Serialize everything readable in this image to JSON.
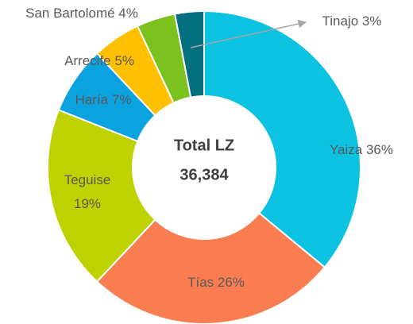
{
  "chart_data": {
    "type": "donut",
    "categories": [
      "Yaiza",
      "Tías",
      "Teguise",
      "Haría",
      "Arrecife",
      "San Bartolomé",
      "Tinajo"
    ],
    "values": [
      36,
      26,
      19,
      7,
      5,
      4,
      3
    ],
    "value_labels": [
      "36%",
      "26%",
      "19%",
      "7%",
      "5%",
      "4%",
      "3%"
    ],
    "colors": [
      "#0bc2e0",
      "#fa7d52",
      "#bed200",
      "#0aa3df",
      "#ffc000",
      "#7cc21f",
      "#026f7e"
    ],
    "center_title": "Total LZ",
    "total": {
      "value": 36384,
      "label": "36,384"
    }
  }
}
